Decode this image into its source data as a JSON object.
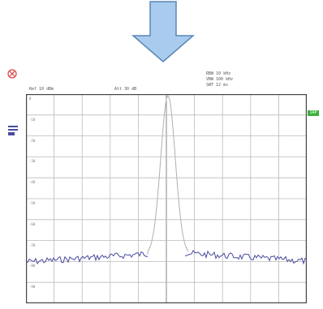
{
  "header": {
    "left": "Ref 10 dBm",
    "mid": "Att 30 dB",
    "right": [
      "RBW 10 kHz",
      "VBW 100 kHz",
      "SWT 12 ms"
    ]
  },
  "y_labels": [
    "0",
    "-10",
    "-20",
    "-30",
    "-40",
    "-50",
    "-60",
    "-70",
    "-80",
    "-90"
  ],
  "right_tag": "1AP",
  "icons": {
    "top": "down-arrow-icon",
    "marker": "marker-icon",
    "side": "trace-icon"
  },
  "colors": {
    "arrow_fill": "#a9cbed",
    "arrow_stroke": "#5b86b5",
    "grid": "#bbbbbb",
    "border": "#444444",
    "trace": "#4a4aa0",
    "peak_trace": "#b0b0b0",
    "tag": "#3bb03b"
  }
}
